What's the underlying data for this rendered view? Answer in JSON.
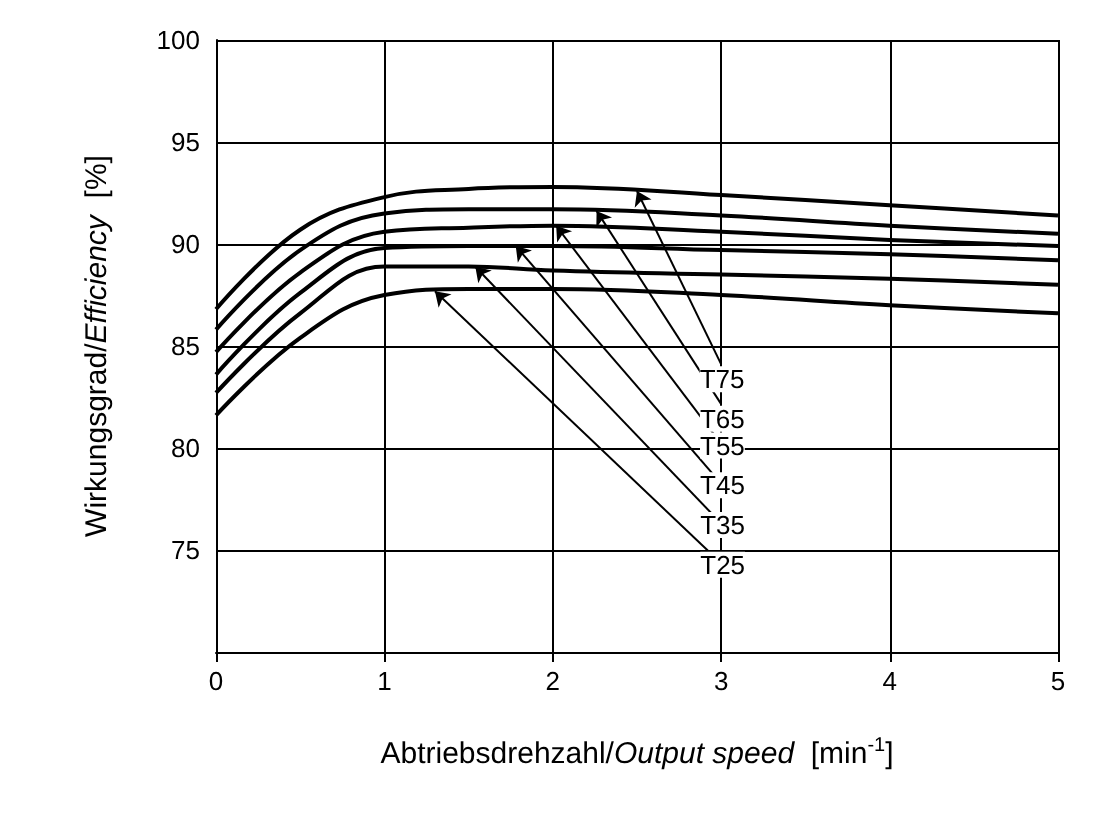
{
  "chart_data": {
    "type": "line",
    "xlabel": "Abtriebsdrehzahl/Output speed  [min$^{-1}$]",
    "ylabel": "Wirkungsgrad/Efficiency  [%]",
    "x": [
      0,
      0.5,
      1,
      1.5,
      2,
      3,
      4,
      5
    ],
    "xlim": [
      0,
      5
    ],
    "xticks": [
      0,
      1,
      2,
      3,
      4,
      5
    ],
    "ylim": [
      70,
      100
    ],
    "yticks": [
      75,
      80,
      85,
      90,
      95,
      100
    ],
    "grid": true,
    "legend": false,
    "marker": "none",
    "line_style": "solid",
    "series": [
      {
        "name": "T75",
        "color": "#000000",
        "values": [
          86.8,
          90.7,
          92.3,
          92.7,
          92.8,
          92.4,
          91.9,
          91.4
        ]
      },
      {
        "name": "T65",
        "color": "#000000",
        "values": [
          85.8,
          89.7,
          91.5,
          91.7,
          91.7,
          91.4,
          90.9,
          90.5
        ]
      },
      {
        "name": "T55",
        "color": "#000000",
        "values": [
          84.7,
          88.6,
          90.6,
          90.8,
          90.9,
          90.6,
          90.2,
          89.9
        ]
      },
      {
        "name": "T45",
        "color": "#000000",
        "values": [
          83.6,
          87.6,
          89.8,
          89.9,
          89.9,
          89.7,
          89.5,
          89.2
        ]
      },
      {
        "name": "T35",
        "color": "#000000",
        "values": [
          82.7,
          86.6,
          88.9,
          88.9,
          88.7,
          88.5,
          88.3,
          88.0
        ]
      },
      {
        "name": "T25",
        "color": "#000000",
        "values": [
          81.6,
          85.4,
          87.5,
          87.8,
          87.8,
          87.5,
          87.0,
          86.6
        ]
      }
    ]
  }
}
